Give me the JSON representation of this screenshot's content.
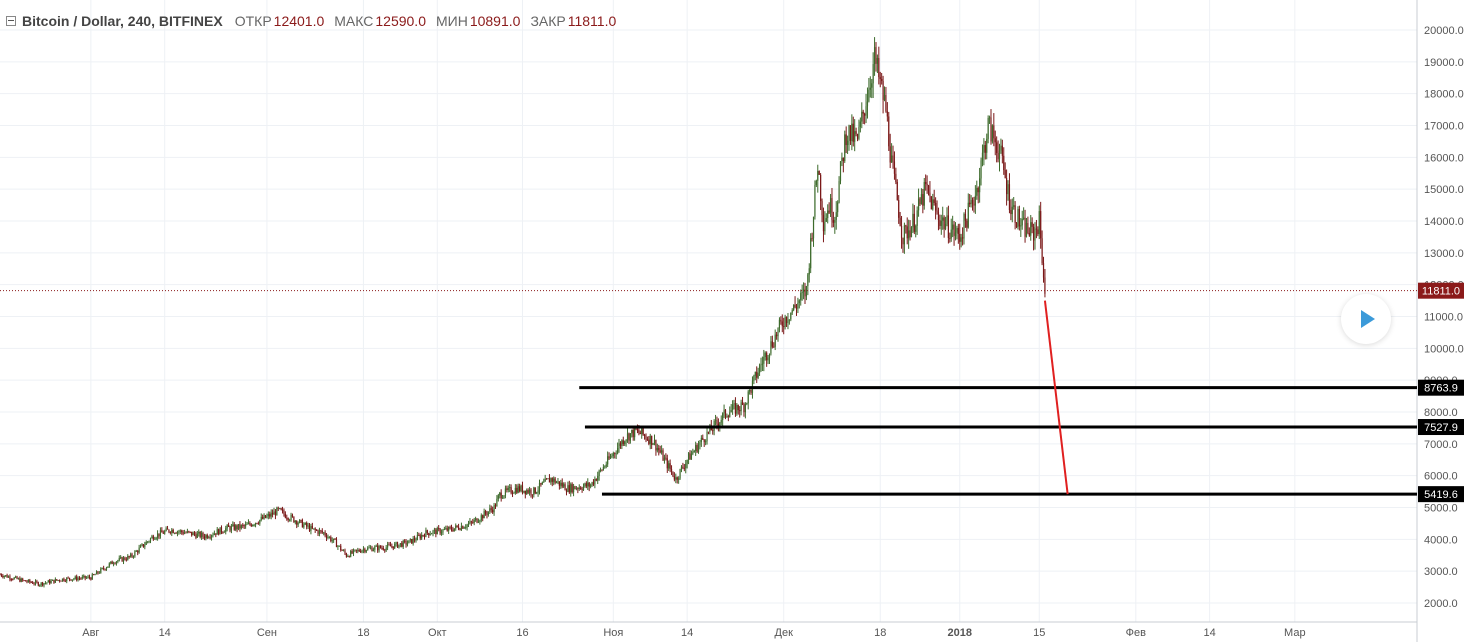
{
  "header": {
    "title": "Bitcoin / Dollar, 240, BITFINEX",
    "open_label": "ОТКР",
    "open_value": "12401.0",
    "high_label": "МАКС",
    "high_value": "12590.0",
    "low_label": "МИН",
    "low_value": "10891.0",
    "close_label": "ЗАКР",
    "close_value": "11811.0"
  },
  "chart_data": {
    "type": "line",
    "series": [
      {
        "x": [
          "2017-07-16",
          "2017-07-20",
          "2017-07-23",
          "2017-07-27",
          "2017-08-01",
          "2017-08-05",
          "2017-08-08",
          "2017-08-12",
          "2017-08-15",
          "2017-08-18",
          "2017-08-21",
          "2017-08-25",
          "2017-08-28",
          "2017-09-01",
          "2017-09-03",
          "2017-09-06",
          "2017-09-09",
          "2017-09-11",
          "2017-09-13",
          "2017-09-15",
          "2017-09-18",
          "2017-09-22",
          "2017-09-26",
          "2017-09-29",
          "2017-10-03",
          "2017-10-07",
          "2017-10-11",
          "2017-10-12",
          "2017-10-15",
          "2017-10-18",
          "2017-10-21",
          "2017-10-24",
          "2017-10-28",
          "2017-11-01",
          "2017-11-03",
          "2017-11-05",
          "2017-11-08",
          "2017-11-10",
          "2017-11-12",
          "2017-11-14",
          "2017-11-17",
          "2017-11-21",
          "2017-11-24",
          "2017-11-27",
          "2017-11-29",
          "2017-12-01",
          "2017-12-03",
          "2017-12-05",
          "2017-12-07",
          "2017-12-08",
          "2017-12-09",
          "2017-12-10",
          "2017-12-12",
          "2017-12-14",
          "2017-12-17",
          "2017-12-19",
          "2017-12-20",
          "2017-12-22",
          "2017-12-24",
          "2017-12-26",
          "2017-12-28",
          "2017-12-30",
          "2018-01-01",
          "2018-01-04",
          "2018-01-06",
          "2018-01-08",
          "2018-01-10",
          "2018-01-12",
          "2018-01-14",
          "2018-01-15",
          "2018-01-16"
        ],
        "values": [
          2900,
          2700,
          2600,
          2750,
          2800,
          3300,
          3450,
          4100,
          4300,
          4200,
          4100,
          4350,
          4400,
          4700,
          4900,
          4600,
          4300,
          4200,
          3900,
          3500,
          3700,
          3750,
          3900,
          4200,
          4300,
          4500,
          5000,
          5400,
          5600,
          5500,
          5900,
          5600,
          5700,
          6700,
          7200,
          7400,
          7100,
          6500,
          5900,
          6500,
          7200,
          8000,
          8200,
          9500,
          10200,
          10900,
          11300,
          11800,
          15800,
          14000,
          14500,
          14200,
          16800,
          16500,
          19100,
          17500,
          15800,
          13500,
          14000,
          15000,
          14200,
          13800,
          13500,
          15000,
          17000,
          16200,
          14500,
          13800,
          13600,
          14000,
          11811
        ]
      }
    ],
    "x_ticks": [
      "Авг",
      "14",
      "Сен",
      "18",
      "Окт",
      "16",
      "Ноя",
      "14",
      "Дек",
      "18",
      "2018",
      "15",
      "Фев",
      "14",
      "Мар"
    ],
    "y_ticks": [
      2000,
      3000,
      4000,
      5000,
      6000,
      7000,
      8000,
      9000,
      10000,
      11000,
      12000,
      13000,
      14000,
      15000,
      16000,
      17000,
      18000,
      19000,
      20000
    ],
    "ylim": [
      1500,
      20400
    ],
    "last_price": "11811.0",
    "levels": [
      {
        "value": 8763.9,
        "label": "8763.9",
        "start": "2017-10-26"
      },
      {
        "value": 7527.9,
        "label": "7527.9",
        "start": "2017-10-27"
      },
      {
        "value": 5419.6,
        "label": "5419.6",
        "start": "2017-10-30"
      }
    ],
    "projection": {
      "from_date": "2018-01-16",
      "from_value": 11500,
      "to_date": "2018-01-20",
      "to_value": 5419.6
    },
    "colors": {
      "up": "#3d6b2c",
      "down": "#7a1717",
      "line_accent": "#e02020",
      "last_price": "#8b1a1a",
      "level": "#000000",
      "play": "#3b9ad9"
    }
  }
}
